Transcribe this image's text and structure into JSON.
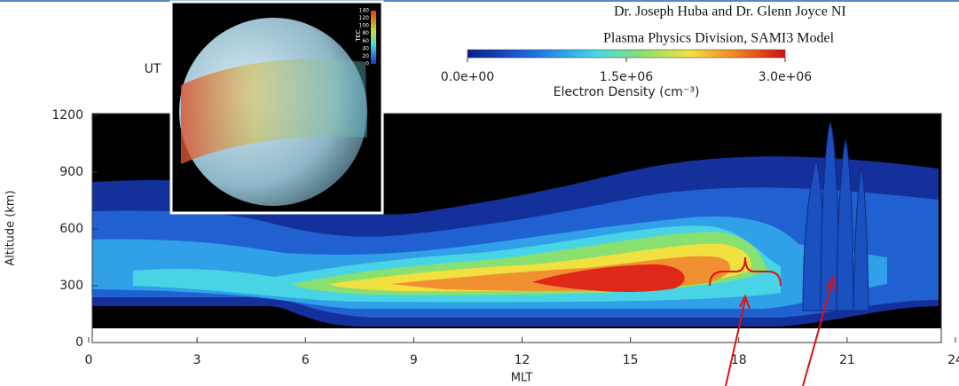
{
  "chart_data": {
    "type": "contour",
    "header_lines": [
      "Dr. Joseph Huba and Dr. Glenn Joyce NI",
      "Plasma Physics Division, SAMI3 Model"
    ],
    "time_label": "UT",
    "x_label": "MLT",
    "y_label": "Altitude (km)",
    "xlim": [
      0,
      24
    ],
    "xticks": [
      0,
      3,
      6,
      9,
      12,
      15,
      18,
      21,
      24
    ],
    "ylim": [
      0,
      1200
    ],
    "yticks": [
      0,
      300,
      600,
      900,
      1200
    ],
    "colorbar": {
      "label": "Electron Density (cm⁻³)",
      "lim": [
        0,
        3000000
      ],
      "ticks": [
        {
          "value": 0,
          "label": "0.0e+00"
        },
        {
          "value": 1500000,
          "label": "1.5e+06"
        },
        {
          "value": 3000000,
          "label": "3.0e+06"
        }
      ]
    },
    "inset": {
      "colorbar_label": "TEC",
      "lim": [
        0,
        140
      ],
      "ticks": [
        140,
        120,
        100,
        80,
        60,
        40,
        20,
        0
      ]
    }
  }
}
